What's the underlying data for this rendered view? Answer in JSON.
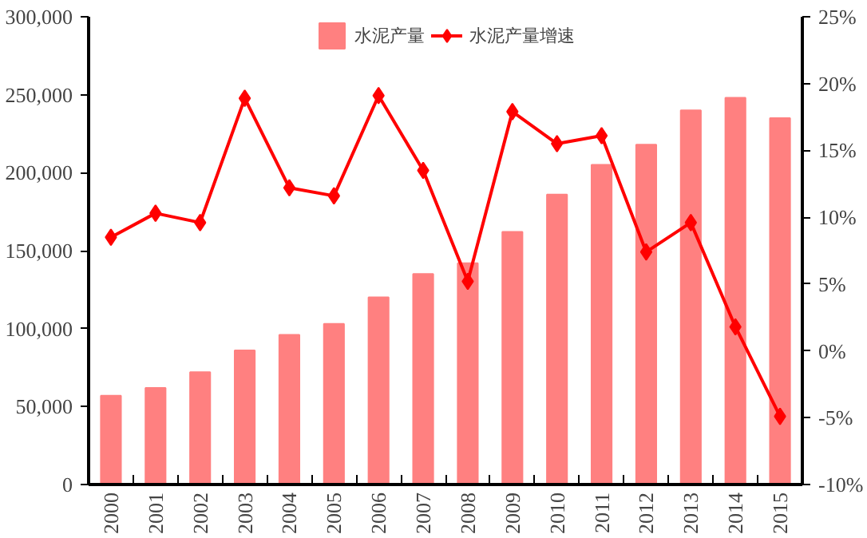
{
  "chart_data": {
    "type": "bar",
    "categories": [
      "2000",
      "2001",
      "2002",
      "2003",
      "2004",
      "2005",
      "2006",
      "2007",
      "2008",
      "2009",
      "2010",
      "2011",
      "2012",
      "2013",
      "2014",
      "2015"
    ],
    "series": [
      {
        "name": "水泥产量",
        "color": "#ff8080",
        "values": [
          57000,
          62000,
          72000,
          86000,
          96000,
          103000,
          120000,
          135000,
          142000,
          162000,
          186000,
          205000,
          218000,
          240000,
          248000,
          235000
        ]
      },
      {
        "name": "水泥产量增速",
        "type": "line",
        "axis": "y2",
        "color": "#ff0000",
        "marker": "diamond",
        "values": [
          8.5,
          10.3,
          9.6,
          18.9,
          12.2,
          11.6,
          19.1,
          13.5,
          5.2,
          17.9,
          15.5,
          16.1,
          7.4,
          9.6,
          1.8,
          -4.9
        ]
      }
    ],
    "ylim": [
      0,
      300000
    ],
    "yticks": [
      {
        "value": 0,
        "label": "0"
      },
      {
        "value": 50000,
        "label": "50,000"
      },
      {
        "value": 100000,
        "label": "100,000"
      },
      {
        "value": 150000,
        "label": "150,000"
      },
      {
        "value": 200000,
        "label": "200,000"
      },
      {
        "value": 250000,
        "label": "250,000"
      },
      {
        "value": 300000,
        "label": "300,000"
      }
    ],
    "y2lim": [
      -10,
      25
    ],
    "y2ticks": [
      {
        "value": -10,
        "label": "-10%"
      },
      {
        "value": -5,
        "label": "-5%"
      },
      {
        "value": 0,
        "label": "0%"
      },
      {
        "value": 5,
        "label": "5%"
      },
      {
        "value": 10,
        "label": "10%"
      },
      {
        "value": 15,
        "label": "15%"
      },
      {
        "value": 20,
        "label": "20%"
      },
      {
        "value": 25,
        "label": "25%"
      }
    ],
    "legend": "top",
    "grid": false
  }
}
